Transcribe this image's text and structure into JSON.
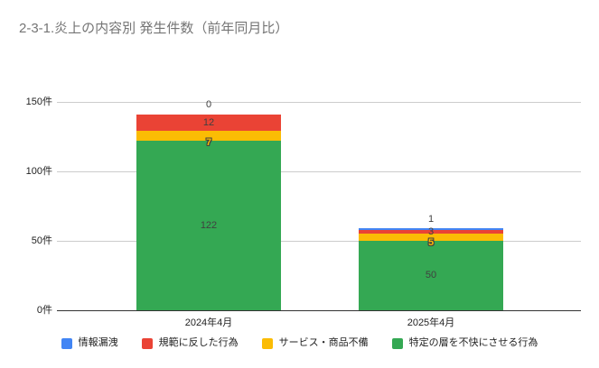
{
  "title": "2-3-1.炎上の内容別 発生件数（前年同月比）",
  "chart_data": {
    "type": "bar",
    "stacked": true,
    "orientation": "vertical",
    "title": "2-3-1.炎上の内容別 発生件数（前年同月比）",
    "categories": [
      "2024年4月",
      "2025年4月"
    ],
    "series": [
      {
        "name": "情報漏洩",
        "color": "#4285F4",
        "values": [
          0,
          1
        ]
      },
      {
        "name": "規範に反した行為",
        "color": "#EA4335",
        "values": [
          12,
          3
        ]
      },
      {
        "name": "サービス・商品不備",
        "color": "#FBBC04",
        "values": [
          7,
          5
        ]
      },
      {
        "name": "特定の層を不快にさせる行為",
        "color": "#34A853",
        "values": [
          122,
          50
        ]
      }
    ],
    "stack_bottom_to_top": [
      3,
      2,
      1,
      0
    ],
    "data_labels_shown": true,
    "ylim": [
      0,
      150
    ],
    "y_ticks": [
      {
        "value": 0,
        "label": "0件"
      },
      {
        "value": 50,
        "label": "50件"
      },
      {
        "value": 100,
        "label": "100件"
      },
      {
        "value": 150,
        "label": "150件"
      }
    ],
    "grid": true,
    "legend_position": "bottom",
    "colors": {
      "title_text": "#757575",
      "axis_text": "#222222",
      "annotation_text": "#404040",
      "gridline": "#cccccc",
      "axis_line": "#333333",
      "background": "#ffffff"
    }
  }
}
